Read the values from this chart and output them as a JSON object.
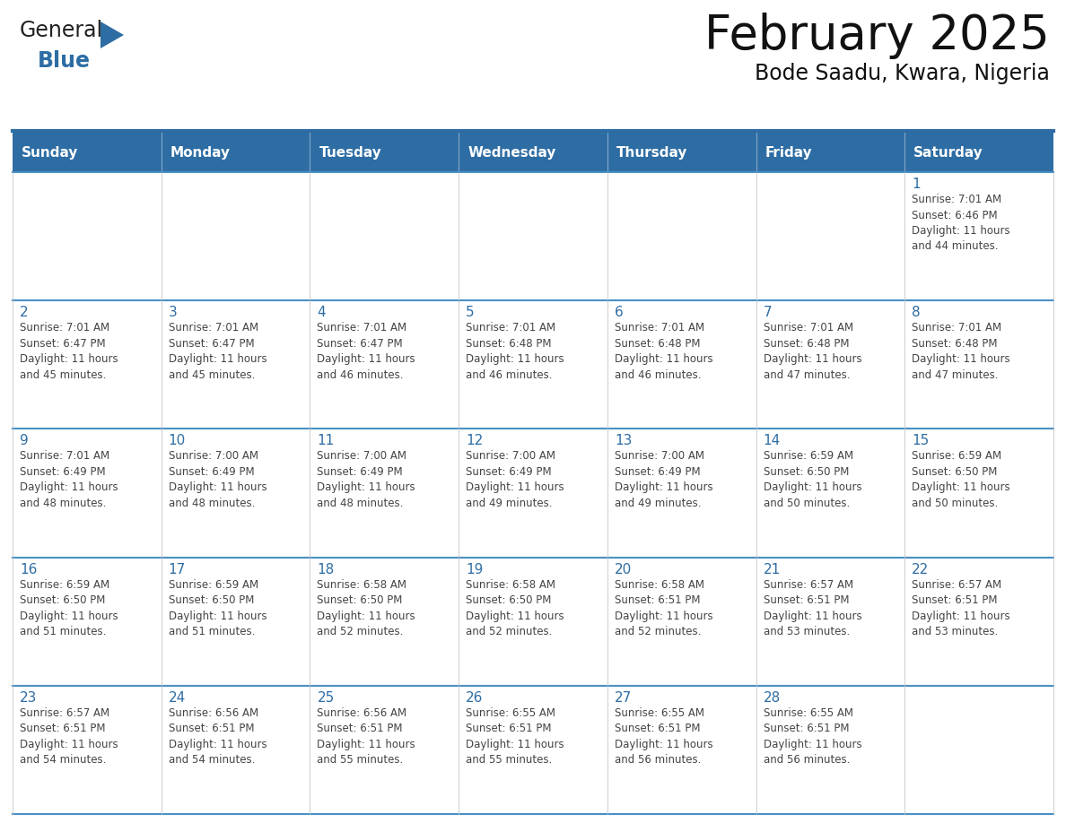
{
  "title": "February 2025",
  "subtitle": "Bode Saadu, Kwara, Nigeria",
  "header_bg": "#2E6DA4",
  "header_text_color": "#FFFFFF",
  "cell_bg": "#FFFFFF",
  "border_color": "#2E6DA4",
  "row_border_color": "#4A90C4",
  "day_number_color": "#2E6DA4",
  "cell_text_color": "#444444",
  "grid_line_color": "#CCCCCC",
  "days_of_week": [
    "Sunday",
    "Monday",
    "Tuesday",
    "Wednesday",
    "Thursday",
    "Friday",
    "Saturday"
  ],
  "weeks": [
    [
      {
        "day": "",
        "info": ""
      },
      {
        "day": "",
        "info": ""
      },
      {
        "day": "",
        "info": ""
      },
      {
        "day": "",
        "info": ""
      },
      {
        "day": "",
        "info": ""
      },
      {
        "day": "",
        "info": ""
      },
      {
        "day": "1",
        "info": "Sunrise: 7:01 AM\nSunset: 6:46 PM\nDaylight: 11 hours\nand 44 minutes."
      }
    ],
    [
      {
        "day": "2",
        "info": "Sunrise: 7:01 AM\nSunset: 6:47 PM\nDaylight: 11 hours\nand 45 minutes."
      },
      {
        "day": "3",
        "info": "Sunrise: 7:01 AM\nSunset: 6:47 PM\nDaylight: 11 hours\nand 45 minutes."
      },
      {
        "day": "4",
        "info": "Sunrise: 7:01 AM\nSunset: 6:47 PM\nDaylight: 11 hours\nand 46 minutes."
      },
      {
        "day": "5",
        "info": "Sunrise: 7:01 AM\nSunset: 6:48 PM\nDaylight: 11 hours\nand 46 minutes."
      },
      {
        "day": "6",
        "info": "Sunrise: 7:01 AM\nSunset: 6:48 PM\nDaylight: 11 hours\nand 46 minutes."
      },
      {
        "day": "7",
        "info": "Sunrise: 7:01 AM\nSunset: 6:48 PM\nDaylight: 11 hours\nand 47 minutes."
      },
      {
        "day": "8",
        "info": "Sunrise: 7:01 AM\nSunset: 6:48 PM\nDaylight: 11 hours\nand 47 minutes."
      }
    ],
    [
      {
        "day": "9",
        "info": "Sunrise: 7:01 AM\nSunset: 6:49 PM\nDaylight: 11 hours\nand 48 minutes."
      },
      {
        "day": "10",
        "info": "Sunrise: 7:00 AM\nSunset: 6:49 PM\nDaylight: 11 hours\nand 48 minutes."
      },
      {
        "day": "11",
        "info": "Sunrise: 7:00 AM\nSunset: 6:49 PM\nDaylight: 11 hours\nand 48 minutes."
      },
      {
        "day": "12",
        "info": "Sunrise: 7:00 AM\nSunset: 6:49 PM\nDaylight: 11 hours\nand 49 minutes."
      },
      {
        "day": "13",
        "info": "Sunrise: 7:00 AM\nSunset: 6:49 PM\nDaylight: 11 hours\nand 49 minutes."
      },
      {
        "day": "14",
        "info": "Sunrise: 6:59 AM\nSunset: 6:50 PM\nDaylight: 11 hours\nand 50 minutes."
      },
      {
        "day": "15",
        "info": "Sunrise: 6:59 AM\nSunset: 6:50 PM\nDaylight: 11 hours\nand 50 minutes."
      }
    ],
    [
      {
        "day": "16",
        "info": "Sunrise: 6:59 AM\nSunset: 6:50 PM\nDaylight: 11 hours\nand 51 minutes."
      },
      {
        "day": "17",
        "info": "Sunrise: 6:59 AM\nSunset: 6:50 PM\nDaylight: 11 hours\nand 51 minutes."
      },
      {
        "day": "18",
        "info": "Sunrise: 6:58 AM\nSunset: 6:50 PM\nDaylight: 11 hours\nand 52 minutes."
      },
      {
        "day": "19",
        "info": "Sunrise: 6:58 AM\nSunset: 6:50 PM\nDaylight: 11 hours\nand 52 minutes."
      },
      {
        "day": "20",
        "info": "Sunrise: 6:58 AM\nSunset: 6:51 PM\nDaylight: 11 hours\nand 52 minutes."
      },
      {
        "day": "21",
        "info": "Sunrise: 6:57 AM\nSunset: 6:51 PM\nDaylight: 11 hours\nand 53 minutes."
      },
      {
        "day": "22",
        "info": "Sunrise: 6:57 AM\nSunset: 6:51 PM\nDaylight: 11 hours\nand 53 minutes."
      }
    ],
    [
      {
        "day": "23",
        "info": "Sunrise: 6:57 AM\nSunset: 6:51 PM\nDaylight: 11 hours\nand 54 minutes."
      },
      {
        "day": "24",
        "info": "Sunrise: 6:56 AM\nSunset: 6:51 PM\nDaylight: 11 hours\nand 54 minutes."
      },
      {
        "day": "25",
        "info": "Sunrise: 6:56 AM\nSunset: 6:51 PM\nDaylight: 11 hours\nand 55 minutes."
      },
      {
        "day": "26",
        "info": "Sunrise: 6:55 AM\nSunset: 6:51 PM\nDaylight: 11 hours\nand 55 minutes."
      },
      {
        "day": "27",
        "info": "Sunrise: 6:55 AM\nSunset: 6:51 PM\nDaylight: 11 hours\nand 56 minutes."
      },
      {
        "day": "28",
        "info": "Sunrise: 6:55 AM\nSunset: 6:51 PM\nDaylight: 11 hours\nand 56 minutes."
      },
      {
        "day": "",
        "info": ""
      }
    ]
  ],
  "logo_general_color": "#222222",
  "logo_blue_color": "#2E6DA4",
  "title_fontsize": 38,
  "subtitle_fontsize": 17,
  "dow_fontsize": 11,
  "day_number_fontsize": 11,
  "cell_text_fontsize": 8.5,
  "fig_width": 11.88,
  "fig_height": 9.18,
  "fig_dpi": 100
}
